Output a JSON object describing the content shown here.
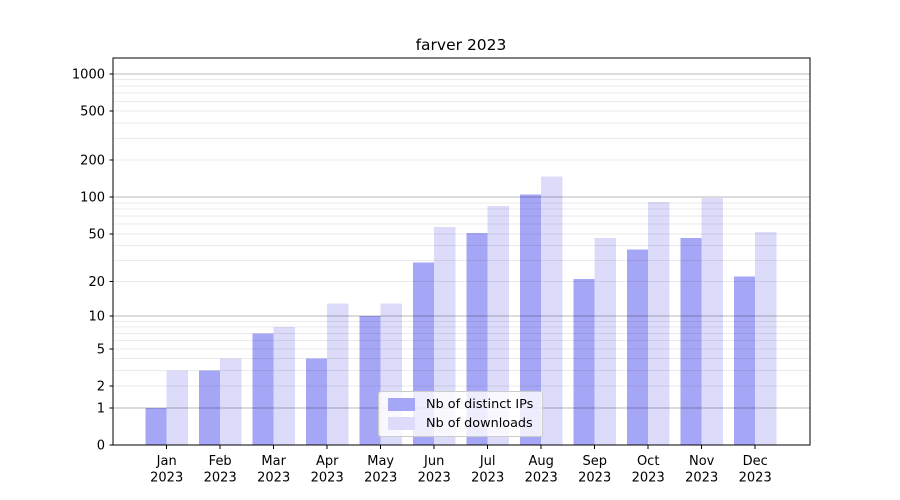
{
  "chart_data": {
    "type": "bar",
    "title": "farver 2023",
    "categories": [
      "Jan 2023",
      "Feb 2023",
      "Mar 2023",
      "Apr 2023",
      "May 2023",
      "Jun 2023",
      "Jul 2023",
      "Aug 2023",
      "Sep 2023",
      "Oct 2023",
      "Nov 2023",
      "Dec 2023"
    ],
    "series": [
      {
        "name": "Nb of distinct IPs",
        "color": "#a6a6f6",
        "values": [
          1,
          3,
          7,
          4,
          10,
          29,
          51,
          105,
          21,
          37,
          46,
          22
        ]
      },
      {
        "name": "Nb of downloads",
        "color": "#dcdcfa",
        "values": [
          3,
          4,
          8,
          13,
          13,
          57,
          85,
          147,
          46,
          91,
          98,
          52
        ]
      }
    ],
    "yscale": "log1p",
    "yticks": [
      0,
      1,
      2,
      5,
      10,
      20,
      50,
      100,
      200,
      500,
      1000
    ],
    "ylim": [
      0,
      1350
    ],
    "xlabel": "",
    "ylabel": "",
    "grid": "horizontal major and minor gridlines drawn over bars",
    "legend_position": "inside bottom-center"
  }
}
